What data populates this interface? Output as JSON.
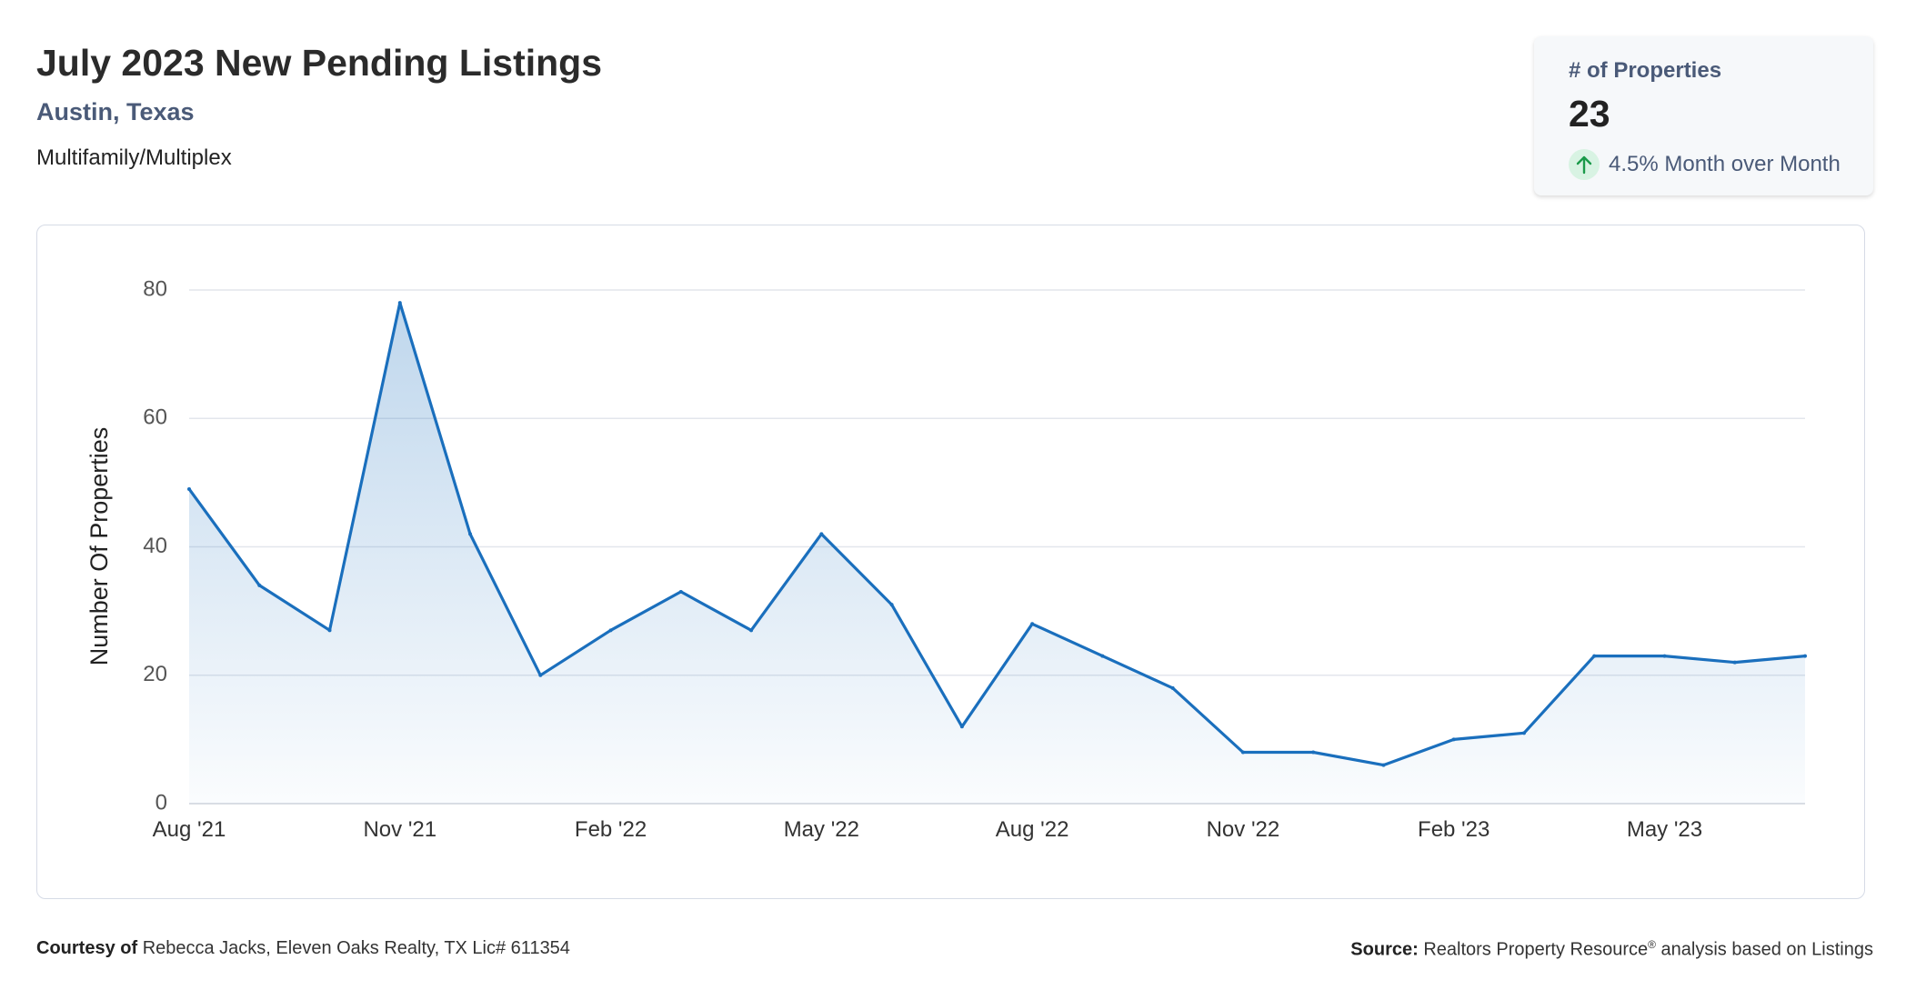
{
  "header": {
    "title": "July 2023 New Pending Listings",
    "location": "Austin, Texas",
    "property_type": "Multifamily/Multiplex"
  },
  "stat_card": {
    "label": "# of Properties",
    "value": "23",
    "change": "4.5% Month over Month",
    "change_direction": "up",
    "change_icon": "arrow-up-icon",
    "change_color": "#1a9a4a"
  },
  "chart_data": {
    "type": "area",
    "ylabel": "Number Of Properties",
    "xlabel": "",
    "ylim": [
      0,
      80
    ],
    "yticks": [
      0,
      20,
      40,
      60,
      80
    ],
    "grid": true,
    "legend": "none",
    "line_color": "#1a6fbd",
    "x": [
      "Aug '21",
      "Sep '21",
      "Oct '21",
      "Nov '21",
      "Dec '21",
      "Jan '22",
      "Feb '22",
      "Mar '22",
      "Apr '22",
      "May '22",
      "Jun '22",
      "Jul '22",
      "Aug '22",
      "Sep '22",
      "Oct '22",
      "Nov '22",
      "Dec '22",
      "Jan '23",
      "Feb '23",
      "Mar '23",
      "Apr '23",
      "May '23",
      "Jun '23",
      "Jul '23"
    ],
    "values": [
      49,
      34,
      27,
      78,
      42,
      20,
      27,
      33,
      27,
      42,
      31,
      12,
      28,
      23,
      18,
      8,
      8,
      6,
      10,
      11,
      23,
      23,
      22,
      23
    ],
    "xtick_labels": [
      "Aug '21",
      "Nov '21",
      "Feb '22",
      "May '22",
      "Aug '22",
      "Nov '22",
      "Feb '23",
      "May '23"
    ],
    "xtick_indices": [
      0,
      3,
      6,
      9,
      12,
      15,
      18,
      21
    ]
  },
  "footer": {
    "courtesy_label": "Courtesy of",
    "courtesy_text": "Rebecca Jacks, Eleven Oaks Realty, TX Lic# 611354",
    "source_label": "Source:",
    "source_text_1": "Realtors Property Resource",
    "source_reg": "®",
    "source_text_2": " analysis based on Listings"
  }
}
